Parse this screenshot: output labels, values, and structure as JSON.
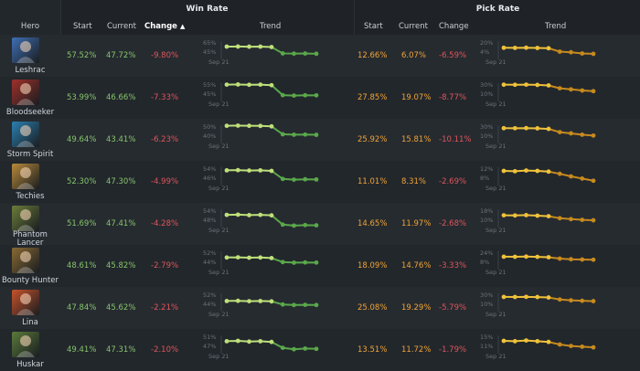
{
  "groups": {
    "win_rate": "Win Rate",
    "pick_rate": "Pick Rate"
  },
  "columns": {
    "hero": "Hero",
    "start": "Start",
    "current": "Current",
    "change": "Change",
    "trend": "Trend",
    "sort_indicator": "▲"
  },
  "trend_date_label": "Sep 21",
  "colors": {
    "win_line": "#bfe07a",
    "win_line_late": "#5aa84a",
    "pick_line": "#f0c23a",
    "pick_line_late": "#c78a1e",
    "positive": "#86c46a",
    "negative": "#e0555a",
    "pick_value": "#f0a436"
  },
  "heroes": [
    {
      "name": "Leshrac",
      "portrait_icon": "leshrac-portrait",
      "portrait_color": "#3f6fb5",
      "win": {
        "start": "57.52%",
        "current": "47.72%",
        "change": "-9.80%",
        "axis_top": "65%",
        "axis_bottom": "45%",
        "trend": [
          57.5,
          57.6,
          57.4,
          57.5,
          56.9,
          48.2,
          47.9,
          48.1,
          47.72
        ]
      },
      "pick": {
        "start": "12.66%",
        "current": "6.07%",
        "change": "-6.59%",
        "axis_top": "20%",
        "axis_bottom": "4%",
        "trend": [
          12.7,
          12.6,
          12.8,
          12.5,
          12.2,
          8.5,
          7.8,
          6.5,
          6.07
        ]
      }
    },
    {
      "name": "Bloodseeker",
      "portrait_icon": "bloodseeker-portrait",
      "portrait_color": "#a0302a",
      "win": {
        "start": "53.99%",
        "current": "46.66%",
        "change": "-7.33%",
        "axis_top": "55%",
        "axis_bottom": "45%",
        "trend": [
          54.0,
          54.1,
          53.9,
          54.0,
          53.6,
          46.8,
          46.5,
          46.7,
          46.66
        ]
      },
      "pick": {
        "start": "27.85%",
        "current": "19.07%",
        "change": "-8.77%",
        "axis_top": "30%",
        "axis_bottom": "10%",
        "trend": [
          27.9,
          27.8,
          28.0,
          27.6,
          26.9,
          23.0,
          21.5,
          20.0,
          19.07
        ]
      }
    },
    {
      "name": "Storm Spirit",
      "portrait_icon": "storm-spirit-portrait",
      "portrait_color": "#2b7fb0",
      "win": {
        "start": "49.64%",
        "current": "43.41%",
        "change": "-6.23%",
        "axis_top": "50%",
        "axis_bottom": "40%",
        "trend": [
          49.6,
          49.7,
          49.6,
          49.5,
          49.2,
          43.8,
          43.5,
          43.6,
          43.41
        ]
      },
      "pick": {
        "start": "25.92%",
        "current": "15.81%",
        "change": "-10.11%",
        "axis_top": "30%",
        "axis_bottom": "10%",
        "trend": [
          25.9,
          25.8,
          26.0,
          25.7,
          24.9,
          20.5,
          18.8,
          17.0,
          15.81
        ]
      }
    },
    {
      "name": "Techies",
      "portrait_icon": "techies-portrait",
      "portrait_color": "#b88a3a",
      "win": {
        "start": "52.30%",
        "current": "47.30%",
        "change": "-4.99%",
        "axis_top": "54%",
        "axis_bottom": "46%",
        "trend": [
          52.3,
          52.4,
          52.2,
          52.3,
          52.0,
          47.6,
          47.2,
          47.4,
          47.3
        ]
      },
      "pick": {
        "start": "11.01%",
        "current": "8.31%",
        "change": "-2.69%",
        "axis_top": "12%",
        "axis_bottom": "8%",
        "trend": [
          11.0,
          10.9,
          11.1,
          11.0,
          10.8,
          10.2,
          9.5,
          8.9,
          8.31
        ]
      }
    },
    {
      "name": "Phantom Lancer",
      "portrait_icon": "phantom-lancer-portrait",
      "portrait_color": "#6b7d3a",
      "win": {
        "start": "51.69%",
        "current": "47.41%",
        "change": "-4.28%",
        "axis_top": "54%",
        "axis_bottom": "48%",
        "trend": [
          51.7,
          51.8,
          51.6,
          51.7,
          51.5,
          47.7,
          47.3,
          47.5,
          47.41
        ]
      },
      "pick": {
        "start": "14.65%",
        "current": "11.97%",
        "change": "-2.68%",
        "axis_top": "18%",
        "axis_bottom": "10%",
        "trend": [
          14.7,
          14.6,
          14.8,
          14.5,
          14.2,
          13.1,
          12.6,
          12.2,
          11.97
        ]
      }
    },
    {
      "name": "Bounty Hunter",
      "portrait_icon": "bounty-hunter-portrait",
      "portrait_color": "#8a6a34",
      "win": {
        "start": "48.61%",
        "current": "45.82%",
        "change": "-2.79%",
        "axis_top": "52%",
        "axis_bottom": "44%",
        "trend": [
          48.6,
          48.7,
          48.5,
          48.6,
          48.3,
          46.1,
          45.8,
          45.9,
          45.82
        ]
      },
      "pick": {
        "start": "18.09%",
        "current": "14.76%",
        "change": "-3.33%",
        "axis_top": "24%",
        "axis_bottom": "8%",
        "trend": [
          18.1,
          18.0,
          18.2,
          17.9,
          17.5,
          16.0,
          15.3,
          15.0,
          14.76
        ]
      }
    },
    {
      "name": "Lina",
      "portrait_icon": "lina-portrait",
      "portrait_color": "#c8522a",
      "win": {
        "start": "47.84%",
        "current": "45.62%",
        "change": "-2.21%",
        "axis_top": "52%",
        "axis_bottom": "44%",
        "trend": [
          47.8,
          47.9,
          47.7,
          47.8,
          47.6,
          45.9,
          45.6,
          45.7,
          45.62
        ]
      },
      "pick": {
        "start": "25.08%",
        "current": "19.29%",
        "change": "-5.79%",
        "axis_top": "30%",
        "axis_bottom": "10%",
        "trend": [
          25.1,
          25.0,
          25.2,
          24.9,
          24.3,
          21.6,
          20.4,
          19.8,
          19.29
        ]
      }
    },
    {
      "name": "Huskar",
      "portrait_icon": "huskar-portrait",
      "portrait_color": "#5a7a3a",
      "win": {
        "start": "49.41%",
        "current": "47.31%",
        "change": "-2.10%",
        "axis_top": "51%",
        "axis_bottom": "47%",
        "trend": [
          49.4,
          49.5,
          49.3,
          49.4,
          49.2,
          47.6,
          47.2,
          47.4,
          47.31
        ]
      },
      "pick": {
        "start": "13.51%",
        "current": "11.72%",
        "change": "-1.79%",
        "axis_top": "15%",
        "axis_bottom": "11%",
        "trend": [
          13.5,
          13.4,
          13.6,
          13.4,
          13.2,
          12.5,
          12.1,
          11.9,
          11.72
        ]
      }
    }
  ]
}
